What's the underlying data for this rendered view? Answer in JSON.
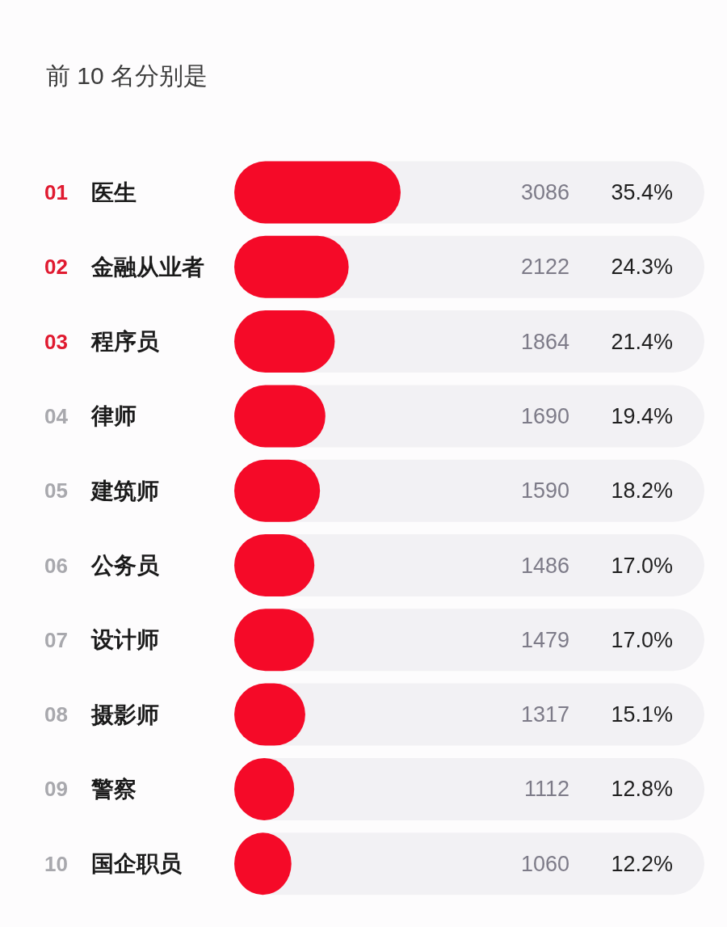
{
  "chart_data": {
    "type": "bar",
    "orientation": "horizontal",
    "title": "前 10 名分别是",
    "categories": [
      "医生",
      "金融从业者",
      "程序员",
      "律师",
      "建筑师",
      "公务员",
      "设计师",
      "摄影师",
      "警察",
      "国企职员"
    ],
    "values": [
      3086,
      2122,
      1864,
      1690,
      1590,
      1486,
      1479,
      1317,
      1112,
      1060
    ],
    "color": "#f50a28",
    "data_labels": true,
    "annotations": [
      "01",
      "02",
      "03",
      "04",
      "05",
      "06",
      "07",
      "08",
      "09",
      "10",
      "35.4%",
      "24.3%",
      "21.4%",
      "19.4%",
      "18.2%",
      "17.0%",
      "17.0%",
      "15.1%",
      "12.8%",
      "12.2%"
    ]
  }
}
